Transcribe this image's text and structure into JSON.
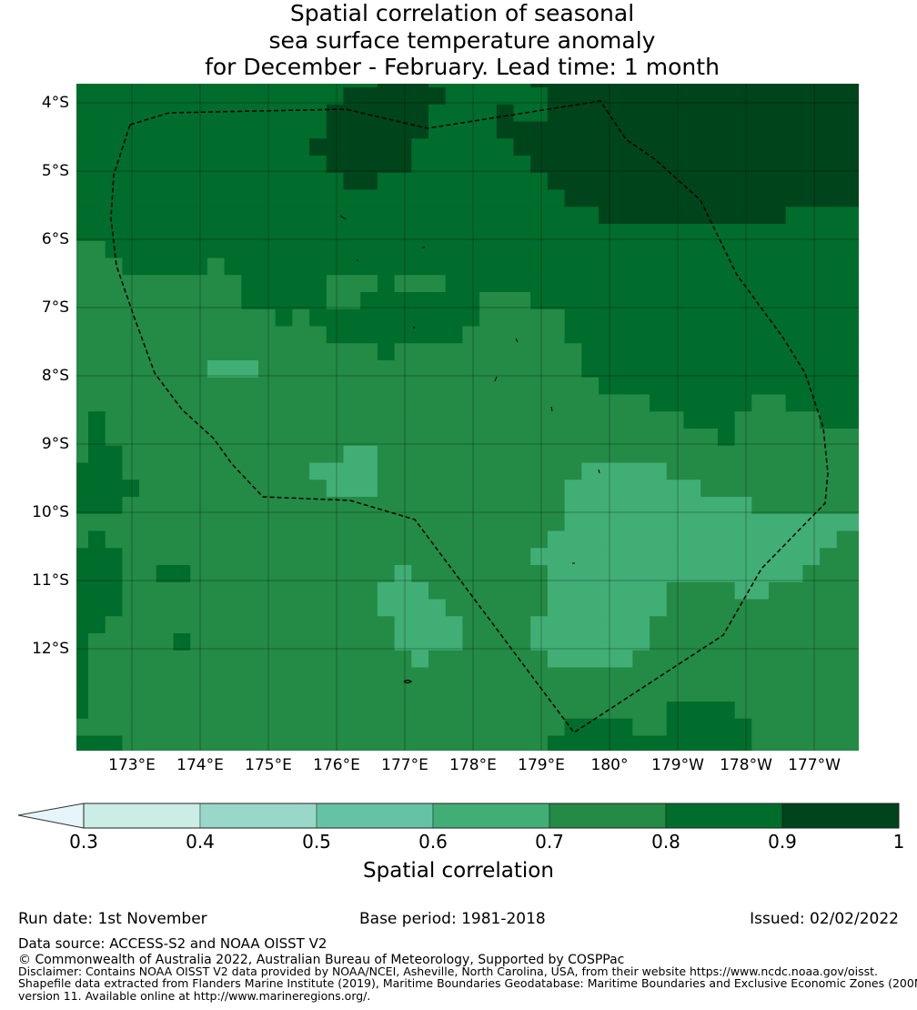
{
  "title": {
    "line1": "Spatial correlation of seasonal",
    "line2": "sea surface temperature anomaly",
    "line3": "for December - February. Lead time: 1 month"
  },
  "map": {
    "lon_ticks": [
      {
        "value": 173,
        "label": "173°E"
      },
      {
        "value": 174,
        "label": "174°E"
      },
      {
        "value": 175,
        "label": "175°E"
      },
      {
        "value": 176,
        "label": "176°E"
      },
      {
        "value": 177,
        "label": "177°E"
      },
      {
        "value": 178,
        "label": "178°E"
      },
      {
        "value": 179,
        "label": "179°E"
      },
      {
        "value": 180,
        "label": "180°"
      },
      {
        "value": 181,
        "label": "179°W"
      },
      {
        "value": 182,
        "label": "178°W"
      },
      {
        "value": 183,
        "label": "177°W"
      }
    ],
    "lat_ticks": [
      {
        "value": 4,
        "label": "4°S"
      },
      {
        "value": 5,
        "label": "5°S"
      },
      {
        "value": 6,
        "label": "6°S"
      },
      {
        "value": 7,
        "label": "7°S"
      },
      {
        "value": 8,
        "label": "8°S"
      },
      {
        "value": 9,
        "label": "9°S"
      },
      {
        "value": 10,
        "label": "10°S"
      },
      {
        "value": 11,
        "label": "11°S"
      },
      {
        "value": 12,
        "label": "12°S"
      }
    ],
    "grid_resolution_deg": 0.25,
    "correlation_class_grid_rle": [
      "8:18,9:3,8:6,9:20",
      "8:16,9:6,8:6,9:19",
      "8:15,9:6,8:4,9:1,8:2,9:19",
      "8:15,9:6,8:4,9:22",
      "8:14,9:6,8:6,9:21",
      "8:15,9:5,8:7,9:20",
      "8:16,9:2,8:10,9:19",
      "8:29,9:18",
      "8:31,9:11,8:5",
      "8:47",
      "7:2,8:45",
      "7:3,8:5,7:1,8:38",
      "7:10,8:5,7:3,8:1,7:3,8:25",
      "7:10,8:5,7:2,8:7,7:3,8:20",
      "7:12,8:1,7:1,8:10,7:5,8:18",
      "7:15,8:8,7:6,8:18",
      "7:18,8:1,7:11,8:17",
      "7:8,6:3,7:19,8:17",
      "7:31,8:16",
      "7:34,8:6,7:2,8:5",
      "7:1,8:1,7:34,8:3,7:5,8:3",
      "7:1,8:1,7:36,8:1,7:8",
      "7:1,8:2,7:13,6:2,7:29",
      "8:3,7:11,6:4,7:12,6:5,7:12",
      "8:4,7:11,6:3,7:11,6:8,7:10",
      "8:3,7:26,6:11,7:7",
      "7:29,6:18",
      "7:1,8:1,7:26,6:17,7:2",
      "8:3,7:24,6:17,7:3",
      "8:3,7:2,8:2,7:12,6:1,7:8,6:15,7:4",
      "8:3,7:15,6:3,7:7,6:7,7:4,6:2,7:6",
      "8:3,7:15,6:4,7:6,6:7,7:12",
      "8:2,7:17,6:4,7:4,6:7,7:13",
      "8:1,7:5,8:1,7:12,6:4,7:4,6:7,7:13",
      "8:1,7:19,6:1,7:7,6:5,7:14",
      "8:1,7:46",
      "8:1,7:46",
      "8:1,7:34,8:4,7:8",
      "7:29,8:4,7:2,8:5,7:7",
      "8:3,7:25,8:12,7:7"
    ]
  },
  "colorbar": {
    "label": "Spatial correlation",
    "under_color": "#e5f5f9",
    "bins": [
      {
        "from": 0.3,
        "to": 0.4,
        "color": "#ccece6"
      },
      {
        "from": 0.4,
        "to": 0.5,
        "color": "#99d8c9"
      },
      {
        "from": 0.5,
        "to": 0.6,
        "color": "#66c2a4"
      },
      {
        "from": 0.6,
        "to": 0.7,
        "color": "#41ae76"
      },
      {
        "from": 0.7,
        "to": 0.8,
        "color": "#238b45"
      },
      {
        "from": 0.8,
        "to": 0.9,
        "color": "#006d2c"
      },
      {
        "from": 0.9,
        "to": 1.0,
        "color": "#00441b"
      }
    ],
    "ticks": [
      "0.3",
      "0.4",
      "0.5",
      "0.6",
      "0.7",
      "0.8",
      "0.9",
      "1"
    ]
  },
  "class_colors": {
    "6": "#41ae76",
    "7": "#238b45",
    "8": "#006d2c",
    "9": "#00441b"
  },
  "footer": {
    "run_date": "Run date: 1st November",
    "base_period": "Base period: 1981-2018",
    "issued": "Issued: 02/02/2022",
    "data_source": "Data source: ACCESS-S2 and NOAA OISST V2",
    "copyright": "© Commonwealth of Australia 2022, Australian Bureau of Meteorology, Supported by COSPPac",
    "disclaimer1": "Disclaimer: Contains NOAA OISST V2 data provided by NOAA/NCEI, Asheville, North Carolina, USA, from their website https://www.ncdc.noaa.gov/oisst.",
    "disclaimer2": "Shapefile data extracted from Flanders Marine Institute (2019), Maritime Boundaries Geodatabase: Maritime Boundaries and Exclusive Economic Zones (200NM),",
    "disclaimer3": "version 11. Available online at http://www.marineregions.org/."
  }
}
